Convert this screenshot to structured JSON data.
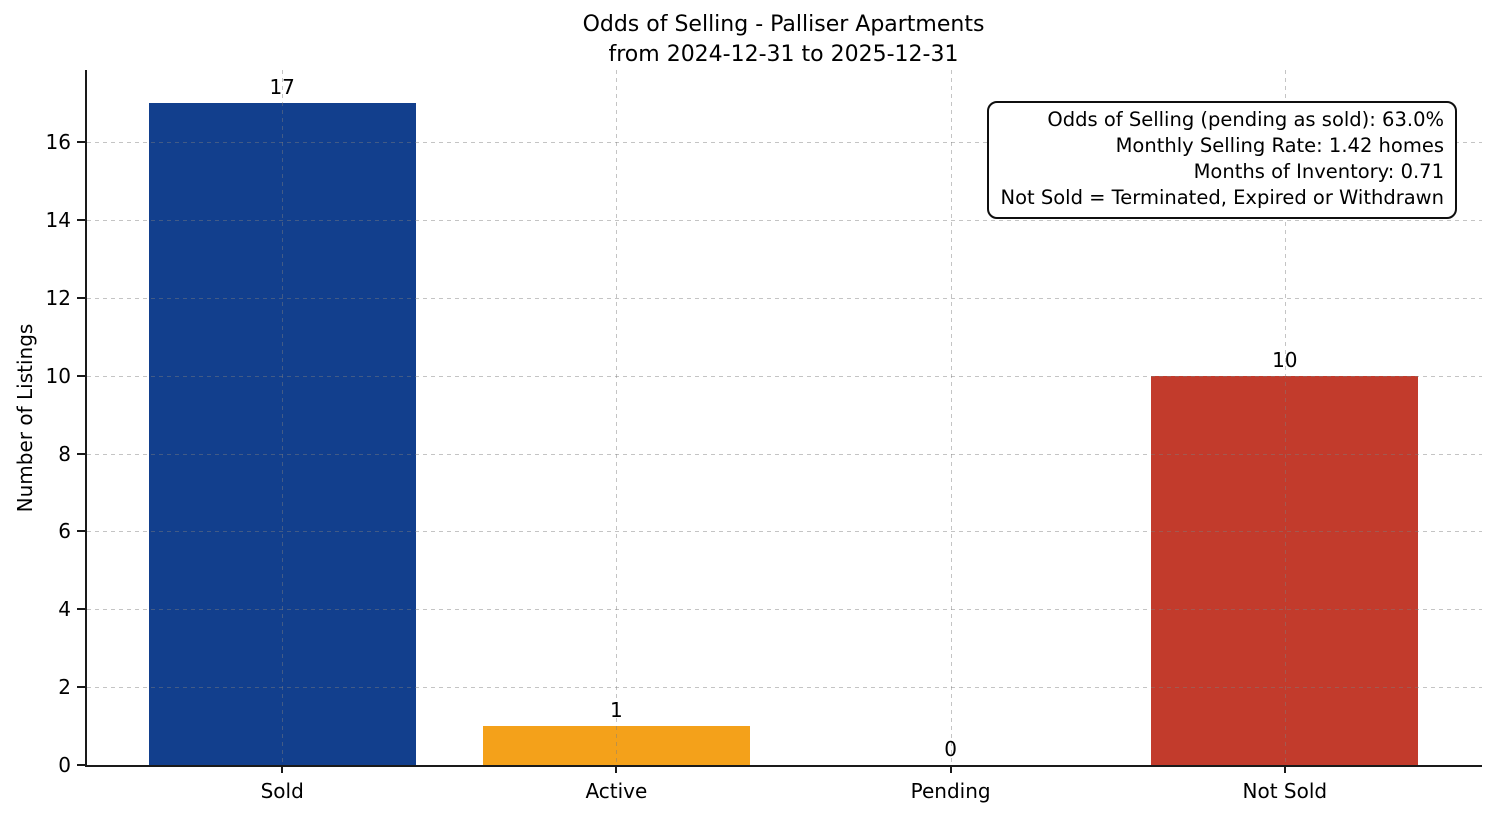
{
  "chart_data": {
    "type": "bar",
    "title_lines": [
      "Odds of Selling - Palliser Apartments",
      "from 2024-12-31 to 2025-12-31"
    ],
    "categories": [
      "Sold",
      "Active",
      "Pending",
      "Not Sold"
    ],
    "values": [
      17,
      1,
      0,
      10
    ],
    "bar_colors": [
      "#123f8d",
      "#f4a11a",
      "#2e7d32",
      "#c23b2c"
    ],
    "xlabel": "",
    "ylabel": "Number of Listings",
    "yticks": [
      0,
      2,
      4,
      6,
      8,
      10,
      12,
      14,
      16
    ],
    "ylim": [
      0,
      17.85
    ],
    "bar_width_fraction": 0.8,
    "grid": {
      "style": "dashed",
      "axes": "both",
      "color": "#c8c8c8"
    },
    "legend": "none",
    "annotation_box": {
      "position": "top-right",
      "lines": [
        "Odds of Selling (pending as sold): 63.0%",
        "Monthly Selling Rate: 1.42 homes",
        "Months of Inventory: 0.71",
        "Not Sold = Terminated, Expired or Withdrawn"
      ]
    },
    "axis_colors": {
      "spine": "#1a1a1a",
      "text": "#000000"
    }
  }
}
